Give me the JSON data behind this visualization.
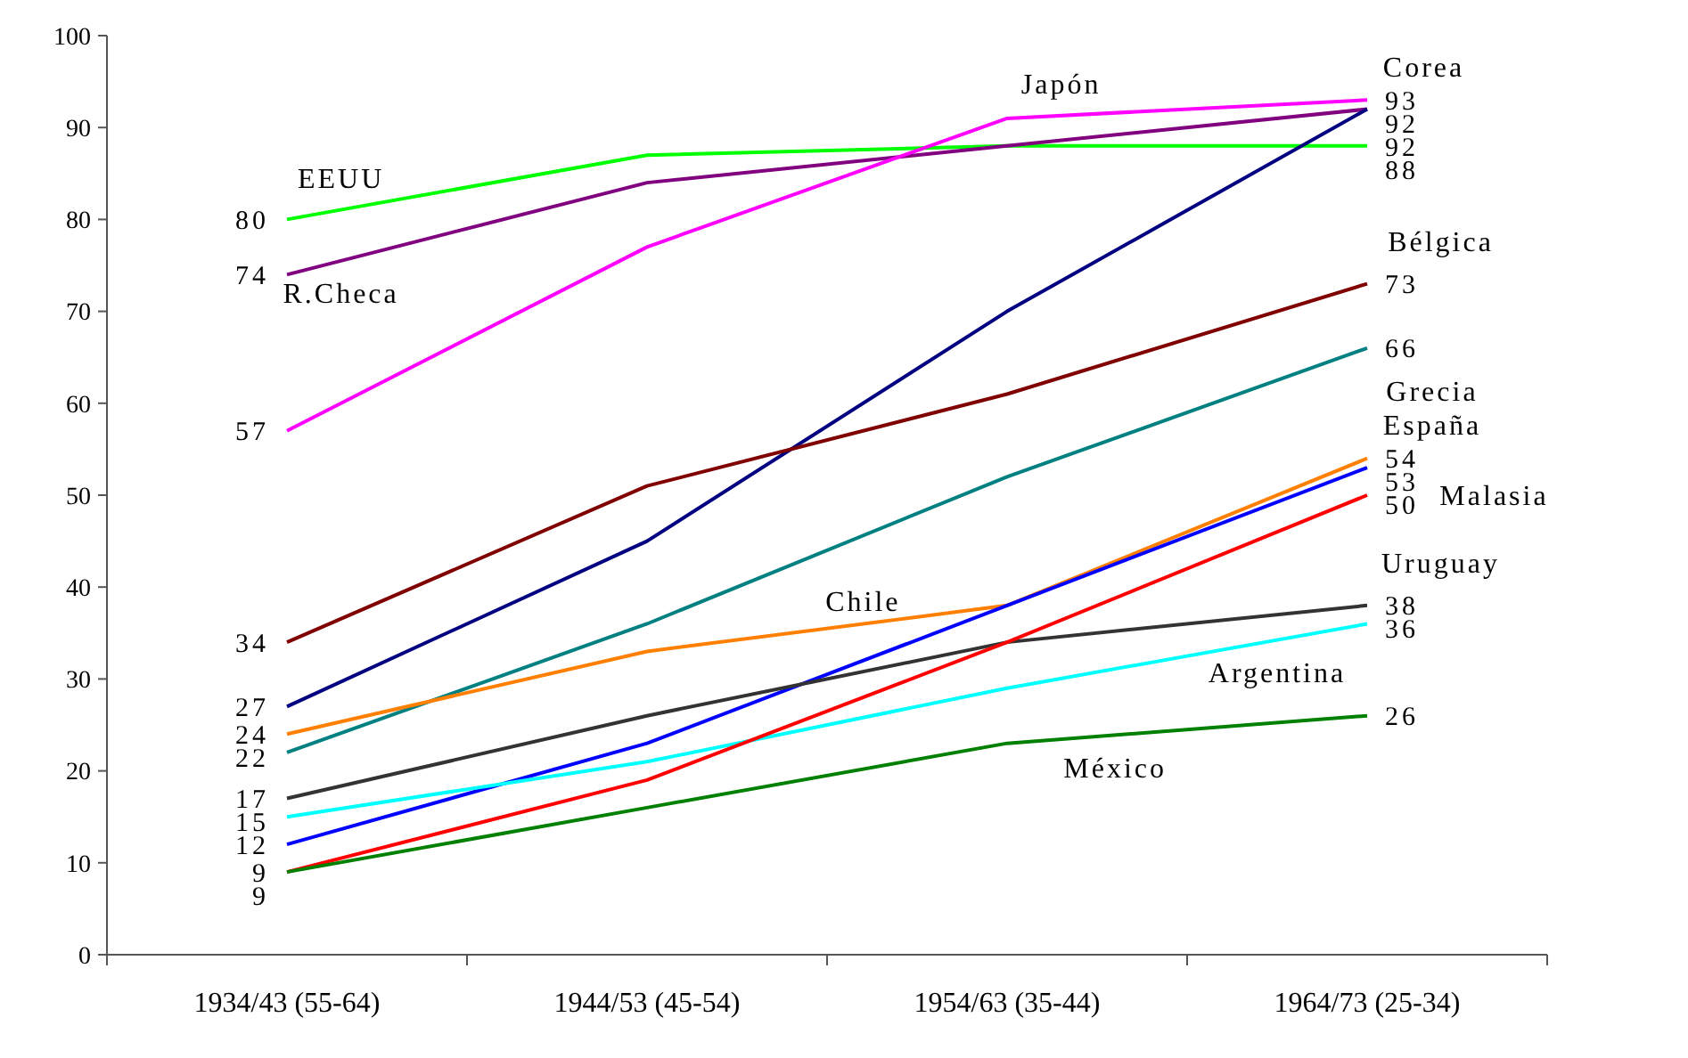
{
  "chart_data": {
    "type": "line",
    "categories": [
      "1934/43 (55-64)",
      "1944/53 (45-54)",
      "1954/63 (35-44)",
      "1964/73 (25-34)"
    ],
    "ylim": [
      0,
      100
    ],
    "yticks": [
      0,
      10,
      20,
      30,
      40,
      50,
      60,
      70,
      80,
      90,
      100
    ],
    "grid": false,
    "marker": "none",
    "line_style": "solid",
    "series": [
      {
        "name": "EEUU",
        "color": "#00ff00",
        "values": [
          80,
          87,
          88,
          88
        ],
        "value_labels": [
          "80",
          null,
          null,
          "88"
        ]
      },
      {
        "name": "R.Checa",
        "color": "#800080",
        "values": [
          74,
          84,
          88,
          92
        ],
        "value_labels": [
          "74",
          null,
          null,
          "92"
        ]
      },
      {
        "name": "Japón",
        "color": "#ff00ff",
        "values": [
          57,
          77,
          91,
          93
        ],
        "value_labels": [
          "57",
          null,
          null,
          "93"
        ]
      },
      {
        "name": "Corea",
        "color": "#000080",
        "values": [
          27,
          45,
          70,
          92
        ],
        "value_labels": [
          "27",
          null,
          null,
          "92"
        ]
      },
      {
        "name": "Bélgica",
        "color": "#800000",
        "values": [
          34,
          51,
          61,
          73
        ],
        "value_labels": [
          "34",
          null,
          null,
          "73"
        ]
      },
      {
        "name": "Grecia",
        "color": "#008080",
        "values": [
          22,
          36,
          52,
          66
        ],
        "value_labels": [
          "22",
          null,
          null,
          "66"
        ]
      },
      {
        "name": "Chile",
        "color": "#ff7f00",
        "values": [
          24,
          33,
          38,
          54
        ],
        "value_labels": [
          "24",
          null,
          null,
          "54"
        ]
      },
      {
        "name": "España",
        "color": "#0000ff",
        "values": [
          12,
          23,
          38,
          53
        ],
        "value_labels": [
          "12",
          null,
          null,
          "53"
        ]
      },
      {
        "name": "Uruguay",
        "color": "#333333",
        "values": [
          17,
          26,
          34,
          38
        ],
        "value_labels": [
          "17",
          null,
          null,
          "38"
        ]
      },
      {
        "name": "Argentina",
        "color": "#00ffff",
        "values": [
          15,
          21,
          29,
          36
        ],
        "value_labels": [
          "15",
          null,
          null,
          "36"
        ]
      },
      {
        "name": "Malasia",
        "color": "#ff0000",
        "values": [
          9,
          19,
          34,
          50
        ],
        "value_labels": [
          "9",
          null,
          null,
          "50"
        ]
      },
      {
        "name": "México",
        "color": "#008000",
        "values": [
          9,
          16,
          23,
          26
        ],
        "value_labels": [
          "9",
          null,
          null,
          "26"
        ]
      }
    ]
  }
}
